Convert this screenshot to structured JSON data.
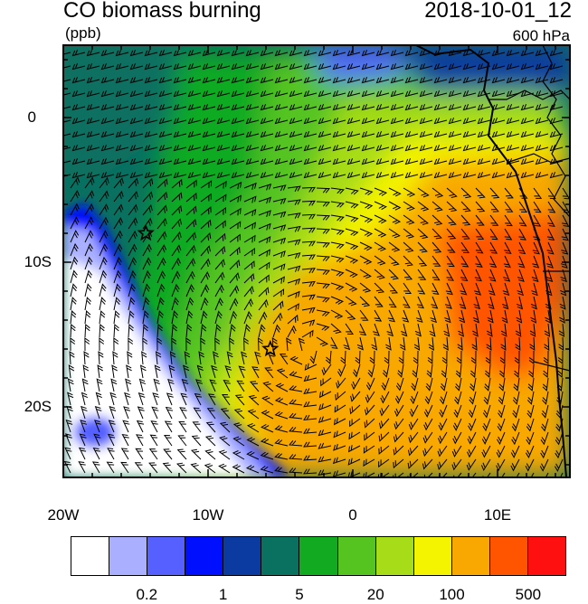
{
  "header": {
    "title": "CO biomass burning",
    "units": "(ppb)",
    "datetime": "2018-10-01_12",
    "level": "600 hPa"
  },
  "map": {
    "lat_labels": [
      "0",
      "10S",
      "20S"
    ],
    "lon_labels": [
      "20W",
      "10W",
      "0",
      "10E"
    ],
    "markers": [
      {
        "name": "star-marker-north",
        "lon": -14.3,
        "lat": -8.0
      },
      {
        "name": "star-marker-south",
        "lon": -5.7,
        "lat": -16.0
      }
    ]
  },
  "colorbar": {
    "colors": [
      "#ffffff",
      "#aab0ff",
      "#5560ff",
      "#0010ff",
      "#0b3aa0",
      "#0a7060",
      "#11aa20",
      "#55c420",
      "#a6dc18",
      "#f4f400",
      "#f8a800",
      "#ff5500",
      "#ff1010"
    ],
    "tick_labels": [
      "0.2",
      "1",
      "5",
      "20",
      "100",
      "500"
    ]
  }
}
